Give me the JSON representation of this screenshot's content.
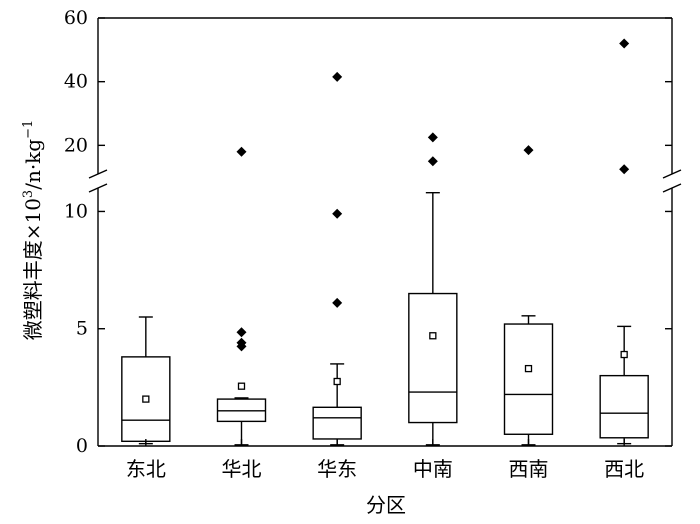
{
  "chart_data": {
    "type": "box",
    "xlabel": "分区",
    "ylabel": "微塑料丰度 × 10³/n·kg⁻¹",
    "ylabel_parts": {
      "main": "微塑料丰度×10",
      "exp": "3",
      "unit": "/n·kg",
      "unit_exp": "−1"
    },
    "y_axis_break": true,
    "ylim_lower": [
      0,
      11
    ],
    "ylim_upper": [
      11,
      60
    ],
    "y_ticks_lower": [
      0,
      5,
      10
    ],
    "y_ticks_upper": [
      20,
      40,
      60
    ],
    "y_tick_labels_lower": [
      "0",
      "5",
      "10"
    ],
    "y_tick_labels_upper": [
      "20",
      "40",
      "60"
    ],
    "categories": [
      "东北",
      "华北",
      "华东",
      "中南",
      "西南",
      "西北"
    ],
    "boxes": [
      {
        "min": 0.1,
        "q1": 0.2,
        "median": 1.1,
        "q3": 3.8,
        "max": 5.5,
        "mean": 2.0,
        "outliers": []
      },
      {
        "min": 0.05,
        "q1": 1.05,
        "median": 1.5,
        "q3": 2.0,
        "max": 2.05,
        "mean": 2.55,
        "outliers": [
          4.25,
          4.4,
          4.85,
          18
        ]
      },
      {
        "min": 0.05,
        "q1": 0.3,
        "median": 1.2,
        "q3": 1.65,
        "max": 3.5,
        "mean": 2.75,
        "outliers": [
          6.1,
          9.9,
          41.5
        ]
      },
      {
        "min": 0.05,
        "q1": 1.0,
        "median": 2.3,
        "q3": 6.5,
        "max": 10.8,
        "mean": 4.7,
        "outliers": [
          15,
          22.5
        ]
      },
      {
        "min": 0.05,
        "q1": 0.5,
        "median": 2.2,
        "q3": 5.2,
        "max": 5.55,
        "mean": 3.3,
        "outliers": [
          18.5
        ]
      },
      {
        "min": 0.1,
        "q1": 0.35,
        "median": 1.4,
        "q3": 3.0,
        "max": 5.1,
        "mean": 3.9,
        "outliers": [
          12.5,
          52
        ]
      }
    ],
    "legend": "none",
    "grid": false
  }
}
